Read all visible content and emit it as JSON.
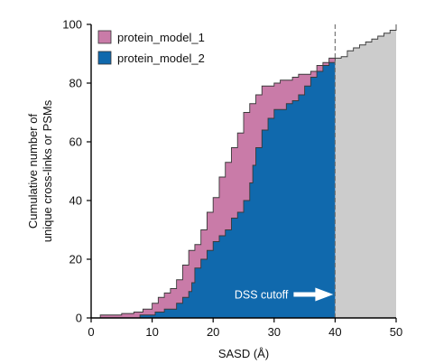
{
  "chart_data": {
    "type": "area",
    "xlabel": "SASD (Å)",
    "ylabel_lines": [
      "Cumulative number of",
      "unique cross-links or PSMs"
    ],
    "xlim": [
      0,
      50
    ],
    "ylim": [
      0,
      100
    ],
    "x_ticks": [
      0,
      10,
      20,
      30,
      40,
      50
    ],
    "y_ticks": [
      0,
      20,
      40,
      60,
      80,
      100
    ],
    "legend_position": "top-left",
    "grid": false,
    "annotation": {
      "text": "DSS cutoff",
      "x": 40,
      "y": 8,
      "arrow_color": "#ffffff"
    },
    "cutoff_line": {
      "x": 40,
      "style": "dashed",
      "color": "#777777"
    },
    "series": [
      {
        "name": "protein_model_1",
        "color": "#c97ba8",
        "points": [
          [
            1.5,
            0
          ],
          [
            1.5,
            1
          ],
          [
            5,
            1
          ],
          [
            5,
            1.5
          ],
          [
            7,
            1.5
          ],
          [
            7,
            2
          ],
          [
            8.5,
            2
          ],
          [
            8.5,
            3
          ],
          [
            10,
            3
          ],
          [
            10,
            5
          ],
          [
            11,
            5
          ],
          [
            11,
            7
          ],
          [
            12,
            7
          ],
          [
            12,
            8.5
          ],
          [
            13,
            8.5
          ],
          [
            13,
            10
          ],
          [
            14,
            10
          ],
          [
            14,
            13
          ],
          [
            15,
            13
          ],
          [
            15,
            18
          ],
          [
            16,
            18
          ],
          [
            16,
            23
          ],
          [
            17,
            23
          ],
          [
            17,
            25
          ],
          [
            18,
            25
          ],
          [
            18,
            30
          ],
          [
            19,
            30
          ],
          [
            19,
            36
          ],
          [
            20,
            36
          ],
          [
            20,
            41
          ],
          [
            21,
            41
          ],
          [
            21,
            48
          ],
          [
            22,
            48
          ],
          [
            22,
            53
          ],
          [
            23,
            53
          ],
          [
            23,
            58
          ],
          [
            24,
            58
          ],
          [
            24,
            63
          ],
          [
            25,
            63
          ],
          [
            25,
            70
          ],
          [
            26,
            70
          ],
          [
            26,
            73
          ],
          [
            27,
            73
          ],
          [
            27,
            76
          ],
          [
            28,
            76
          ],
          [
            28,
            79
          ],
          [
            30,
            79
          ],
          [
            30,
            80
          ],
          [
            31,
            80
          ],
          [
            31,
            81
          ],
          [
            33,
            81
          ],
          [
            33,
            82
          ],
          [
            34,
            82
          ],
          [
            34,
            83
          ],
          [
            36,
            83
          ],
          [
            36,
            84
          ],
          [
            37,
            84
          ],
          [
            37,
            86
          ],
          [
            38,
            86
          ],
          [
            38,
            87
          ],
          [
            39,
            87
          ],
          [
            39,
            88.5
          ],
          [
            40,
            88.5
          ]
        ]
      },
      {
        "name": "protein_model_2",
        "color": "#1069ad",
        "points": [
          [
            8,
            0
          ],
          [
            8,
            1
          ],
          [
            10.5,
            1
          ],
          [
            10.5,
            2
          ],
          [
            12,
            2
          ],
          [
            12,
            3
          ],
          [
            14,
            3
          ],
          [
            14,
            5
          ],
          [
            15,
            5
          ],
          [
            15,
            7
          ],
          [
            16,
            7
          ],
          [
            16,
            9
          ],
          [
            16.5,
            9
          ],
          [
            16.5,
            12
          ],
          [
            17,
            12
          ],
          [
            17,
            17
          ],
          [
            18,
            17
          ],
          [
            18,
            20
          ],
          [
            19,
            20
          ],
          [
            19,
            23
          ],
          [
            20,
            23
          ],
          [
            20,
            26
          ],
          [
            21,
            26
          ],
          [
            21,
            28
          ],
          [
            22,
            28
          ],
          [
            22,
            30
          ],
          [
            23,
            30
          ],
          [
            23,
            34
          ],
          [
            24,
            34
          ],
          [
            24,
            36
          ],
          [
            25,
            36
          ],
          [
            25,
            40
          ],
          [
            26,
            40
          ],
          [
            26,
            46
          ],
          [
            26.5,
            46
          ],
          [
            26.5,
            52
          ],
          [
            27,
            52
          ],
          [
            27,
            58
          ],
          [
            28,
            58
          ],
          [
            28,
            64
          ],
          [
            29,
            64
          ],
          [
            29,
            68
          ],
          [
            30,
            68
          ],
          [
            30,
            71
          ],
          [
            32,
            71
          ],
          [
            32,
            73
          ],
          [
            33,
            73
          ],
          [
            33,
            74
          ],
          [
            34,
            74
          ],
          [
            34,
            76
          ],
          [
            35,
            76
          ],
          [
            35,
            79
          ],
          [
            36,
            79
          ],
          [
            36,
            82
          ],
          [
            37,
            82
          ],
          [
            37,
            84
          ],
          [
            38,
            84
          ],
          [
            38,
            86
          ],
          [
            39,
            86
          ],
          [
            39,
            87
          ],
          [
            40,
            87
          ]
        ]
      },
      {
        "name": "",
        "color": "#cccccc",
        "legend": false,
        "points": [
          [
            40,
            87
          ],
          [
            40,
            88.5
          ],
          [
            41,
            88.5
          ],
          [
            41,
            89
          ],
          [
            42,
            89
          ],
          [
            42,
            91
          ],
          [
            43,
            91
          ],
          [
            43,
            92
          ],
          [
            44,
            92
          ],
          [
            44,
            93
          ],
          [
            45,
            93
          ],
          [
            45,
            94
          ],
          [
            46,
            94
          ],
          [
            46,
            95
          ],
          [
            47,
            95
          ],
          [
            47,
            96
          ],
          [
            48,
            96
          ],
          [
            48,
            97
          ],
          [
            49,
            97
          ],
          [
            49,
            98
          ],
          [
            50,
            98
          ],
          [
            50,
            100
          ]
        ]
      }
    ]
  }
}
